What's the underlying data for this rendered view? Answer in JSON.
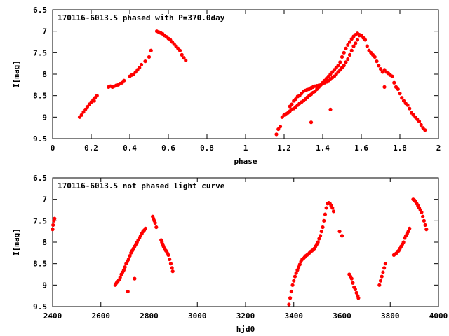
{
  "chart_data": [
    {
      "type": "scatter",
      "title": "170116-6013.5 phased with P=370.0day",
      "xlabel": "phase",
      "ylabel": "I[mag]",
      "xlim": [
        0,
        2
      ],
      "ylim": [
        9.5,
        6.5
      ],
      "y_inverted": true,
      "xticks": [
        "0",
        "0.2",
        "0.4",
        "0.6",
        "0.8",
        "1",
        "1.2",
        "1.4",
        "1.6",
        "1.8",
        "2"
      ],
      "yticks": [
        "6.5",
        "7",
        "7.5",
        "8",
        "8.5",
        "9",
        "9.5"
      ],
      "marker_color": "#ff0000",
      "series": [
        {
          "x": [
            0.14,
            0.15,
            0.16,
            0.17,
            0.18,
            0.19,
            0.2,
            0.21,
            0.215,
            0.22,
            0.23,
            0.29,
            0.3,
            0.31,
            0.32,
            0.33,
            0.34,
            0.35,
            0.36,
            0.37,
            0.4,
            0.41,
            0.42,
            0.43,
            0.44,
            0.45,
            0.46,
            0.48,
            0.5,
            0.51,
            0.54,
            0.55,
            0.56,
            0.57,
            0.58,
            0.59,
            0.6,
            0.61,
            0.62,
            0.63,
            0.64,
            0.65,
            0.66,
            0.67,
            0.68,
            0.69,
            1.16,
            1.17,
            1.18,
            1.19,
            1.2,
            1.21,
            1.22,
            1.23,
            1.24,
            1.25,
            1.26,
            1.27,
            1.28,
            1.29,
            1.3,
            1.31,
            1.32,
            1.33,
            1.34,
            1.35,
            1.36,
            1.37,
            1.38,
            1.39,
            1.4,
            1.41,
            1.42,
            1.43,
            1.44,
            1.45,
            1.46,
            1.47,
            1.48,
            1.49,
            1.5,
            1.51,
            1.52,
            1.53,
            1.54,
            1.55,
            1.56,
            1.57,
            1.58,
            1.59,
            1.6,
            1.61,
            1.62,
            1.63,
            1.64,
            1.65,
            1.23,
            1.24,
            1.25,
            1.26,
            1.27,
            1.28,
            1.29,
            1.3,
            1.31,
            1.32,
            1.33,
            1.34,
            1.35,
            1.36,
            1.37,
            1.38,
            1.39,
            1.4,
            1.41,
            1.42,
            1.43,
            1.44,
            1.45,
            1.46,
            1.47,
            1.48,
            1.49,
            1.5,
            1.51,
            1.52,
            1.53,
            1.54,
            1.55,
            1.56,
            1.57,
            1.58,
            1.59,
            1.66,
            1.67,
            1.68,
            1.69,
            1.7,
            1.71,
            1.72,
            1.73,
            1.74,
            1.75,
            1.76,
            1.77,
            1.78,
            1.79,
            1.8,
            1.81,
            1.82,
            1.83,
            1.84,
            1.85,
            1.86,
            1.87,
            1.88,
            1.89,
            1.9,
            1.91,
            1.92,
            1.93,
            1.34,
            1.44,
            1.72
          ],
          "y": [
            9.0,
            8.95,
            8.88,
            8.82,
            8.76,
            8.7,
            8.65,
            8.6,
            8.62,
            8.55,
            8.5,
            8.3,
            8.28,
            8.3,
            8.28,
            8.26,
            8.25,
            8.22,
            8.2,
            8.15,
            8.05,
            8.02,
            8.0,
            7.95,
            7.9,
            7.85,
            7.78,
            7.7,
            7.6,
            7.45,
            7.0,
            7.02,
            7.04,
            7.06,
            7.1,
            7.13,
            7.17,
            7.2,
            7.25,
            7.3,
            7.35,
            7.4,
            7.45,
            7.55,
            7.62,
            7.68,
            9.4,
            9.28,
            9.22,
            9.0,
            8.95,
            8.92,
            8.9,
            8.86,
            8.82,
            8.8,
            8.76,
            8.72,
            8.68,
            8.65,
            8.62,
            8.58,
            8.54,
            8.5,
            8.47,
            8.43,
            8.4,
            8.35,
            8.3,
            8.25,
            8.2,
            8.15,
            8.1,
            8.05,
            8.0,
            7.95,
            7.9,
            7.85,
            7.8,
            7.72,
            7.6,
            7.5,
            7.4,
            7.32,
            7.25,
            7.18,
            7.12,
            7.08,
            7.05,
            7.08,
            7.1,
            7.15,
            7.2,
            7.35,
            7.45,
            7.5,
            8.75,
            8.7,
            8.62,
            8.58,
            8.52,
            8.5,
            8.45,
            8.4,
            8.38,
            8.36,
            8.35,
            8.32,
            8.3,
            8.28,
            8.27,
            8.26,
            8.25,
            8.22,
            8.2,
            8.18,
            8.15,
            8.12,
            8.08,
            8.05,
            8.0,
            7.95,
            7.9,
            7.85,
            7.8,
            7.72,
            7.65,
            7.55,
            7.45,
            7.35,
            7.28,
            7.2,
            7.1,
            7.55,
            7.6,
            7.7,
            7.8,
            7.88,
            7.95,
            7.9,
            7.95,
            7.98,
            8.02,
            8.05,
            8.2,
            8.3,
            8.35,
            8.45,
            8.55,
            8.62,
            8.68,
            8.72,
            8.8,
            8.9,
            8.95,
            9.0,
            9.05,
            9.1,
            9.18,
            9.25,
            9.3,
            9.12,
            8.82,
            8.3
          ]
        }
      ]
    },
    {
      "type": "scatter",
      "title": "170116-6013.5 not phased light curve",
      "xlabel": "hjd0",
      "ylabel": "I[mag]",
      "xlim": [
        2400,
        4000
      ],
      "ylim": [
        9.5,
        6.5
      ],
      "y_inverted": true,
      "xticks": [
        "2400",
        "2600",
        "2800",
        "3000",
        "3200",
        "3400",
        "3600",
        "3800",
        "4000"
      ],
      "yticks": [
        "6.5",
        "7",
        "7.5",
        "8",
        "8.5",
        "9",
        "9.5"
      ],
      "marker_color": "#ff0000",
      "series": [
        {
          "x": [
            2400,
            2402,
            2405,
            2408,
            2660,
            2665,
            2670,
            2675,
            2680,
            2685,
            2690,
            2695,
            2700,
            2705,
            2710,
            2715,
            2720,
            2725,
            2730,
            2735,
            2740,
            2745,
            2750,
            2755,
            2760,
            2765,
            2770,
            2775,
            2780,
            2785,
            2712,
            2740,
            2815,
            2818,
            2822,
            2825,
            2830,
            2850,
            2853,
            2857,
            2860,
            2865,
            2870,
            2875,
            2880,
            2885,
            2890,
            2895,
            2898,
            3380,
            3385,
            3390,
            3395,
            3400,
            3405,
            3410,
            3415,
            3420,
            3425,
            3430,
            3435,
            3440,
            3445,
            3450,
            3455,
            3460,
            3465,
            3470,
            3475,
            3480,
            3485,
            3490,
            3495,
            3500,
            3505,
            3510,
            3515,
            3520,
            3525,
            3530,
            3535,
            3540,
            3545,
            3550,
            3555,
            3560,
            3565,
            3590,
            3600,
            3630,
            3635,
            3640,
            3645,
            3650,
            3655,
            3660,
            3665,
            3668,
            3755,
            3760,
            3765,
            3770,
            3775,
            3780,
            3815,
            3820,
            3825,
            3830,
            3835,
            3840,
            3845,
            3850,
            3855,
            3860,
            3865,
            3870,
            3875,
            3880,
            3895,
            3900,
            3905,
            3910,
            3915,
            3920,
            3925,
            3930,
            3935,
            3940,
            3945,
            3950
          ],
          "y": [
            7.7,
            7.6,
            7.5,
            7.45,
            9.0,
            8.95,
            8.92,
            8.88,
            8.82,
            8.75,
            8.7,
            8.65,
            8.58,
            8.5,
            8.45,
            8.4,
            8.32,
            8.25,
            8.2,
            8.15,
            8.1,
            8.05,
            8.0,
            7.95,
            7.9,
            7.85,
            7.8,
            7.75,
            7.72,
            7.68,
            9.15,
            8.85,
            7.4,
            7.45,
            7.5,
            7.55,
            7.65,
            7.95,
            8.0,
            8.05,
            8.1,
            8.15,
            8.2,
            8.25,
            8.3,
            8.4,
            8.5,
            8.6,
            8.68,
            9.45,
            9.3,
            9.15,
            9.0,
            8.9,
            8.8,
            8.72,
            8.65,
            8.58,
            8.52,
            8.45,
            8.4,
            8.38,
            8.35,
            8.32,
            8.3,
            8.28,
            8.25,
            8.22,
            8.2,
            8.18,
            8.15,
            8.1,
            8.05,
            8.0,
            7.92,
            7.85,
            7.75,
            7.65,
            7.5,
            7.35,
            7.2,
            7.1,
            7.08,
            7.1,
            7.15,
            7.2,
            7.28,
            7.75,
            7.85,
            8.75,
            8.8,
            8.85,
            8.95,
            9.05,
            9.1,
            9.18,
            9.25,
            9.3,
            9.0,
            8.9,
            8.8,
            8.7,
            8.6,
            8.5,
            8.3,
            8.28,
            8.26,
            8.22,
            8.2,
            8.15,
            8.1,
            8.05,
            8.0,
            7.9,
            7.85,
            7.8,
            7.75,
            7.68,
            7.0,
            7.02,
            7.05,
            7.1,
            7.15,
            7.2,
            7.25,
            7.3,
            7.4,
            7.5,
            7.6,
            7.7
          ]
        }
      ]
    }
  ]
}
